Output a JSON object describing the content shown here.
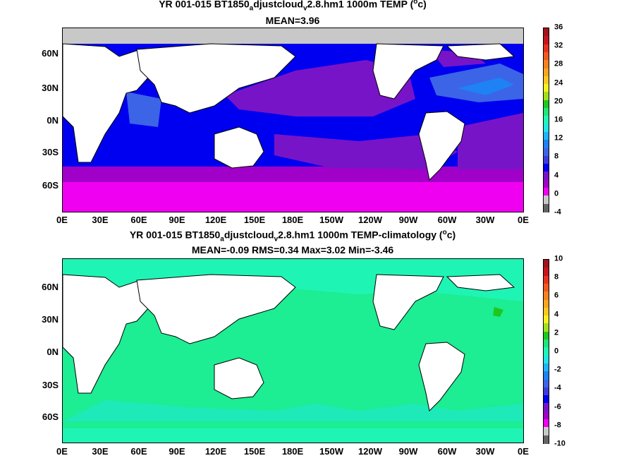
{
  "panel1": {
    "title_a": "YR 001-015 BT1850",
    "title_sub1": "a",
    "title_b": "djustcloud",
    "title_sub2": "v",
    "title_c": "2.8.hm1 1000m TEMP (",
    "title_sup": "o",
    "title_d": "c)",
    "stats": "MEAN=3.96",
    "colorbar": {
      "ticks": [
        "36",
        "32",
        "28",
        "24",
        "20",
        "16",
        "12",
        "8",
        "4",
        "0",
        "-4"
      ],
      "colors": [
        "#a0141e",
        "#c8141e",
        "#e6321e",
        "#f05a1e",
        "#f5821e",
        "#faa51e",
        "#fac81e",
        "#f5f01e",
        "#a0e11e",
        "#1ec81e",
        "#1ee678",
        "#1ef5b4",
        "#1ee6e6",
        "#1eb4f5",
        "#1e82f5",
        "#3c64e6",
        "#3c3cdc",
        "#0000f0",
        "#7814c8",
        "#a000c8",
        "#f000f0",
        "#c8c8c8",
        "#646464"
      ]
    }
  },
  "panel2": {
    "title_a": "YR 001-015 BT1850",
    "title_sub1": "a",
    "title_b": "djustcloud",
    "title_sub2": "v",
    "title_c": "2.8.hm1 1000m TEMP-climatology (",
    "title_sup": "o",
    "title_d": "c)",
    "stats": "MEAN=-0.09   RMS=0.34   Max=3.02   Min=-3.46",
    "colorbar": {
      "ticks": [
        "10",
        "8",
        "6",
        "4",
        "2",
        "0",
        "-2",
        "-4",
        "-6",
        "-8",
        "-10"
      ],
      "colors": [
        "#a0141e",
        "#c8141e",
        "#e6321e",
        "#f05a1e",
        "#f5821e",
        "#faa51e",
        "#fac81e",
        "#f5f01e",
        "#a0e11e",
        "#1ec81e",
        "#1ee678",
        "#1ef5b4",
        "#1ee6e6",
        "#1eb4f5",
        "#1e82f5",
        "#3c64e6",
        "#3c3cdc",
        "#0000f0",
        "#7814c8",
        "#a000c8",
        "#f000f0",
        "#c8c8c8",
        "#646464"
      ]
    }
  },
  "lat_labels": [
    "60N",
    "30N",
    "0N",
    "30S",
    "60S"
  ],
  "lon_labels": [
    "0E",
    "30E",
    "60E",
    "90E",
    "120E",
    "150E",
    "180E",
    "150W",
    "120W",
    "90W",
    "60W",
    "30W",
    "0E"
  ]
}
